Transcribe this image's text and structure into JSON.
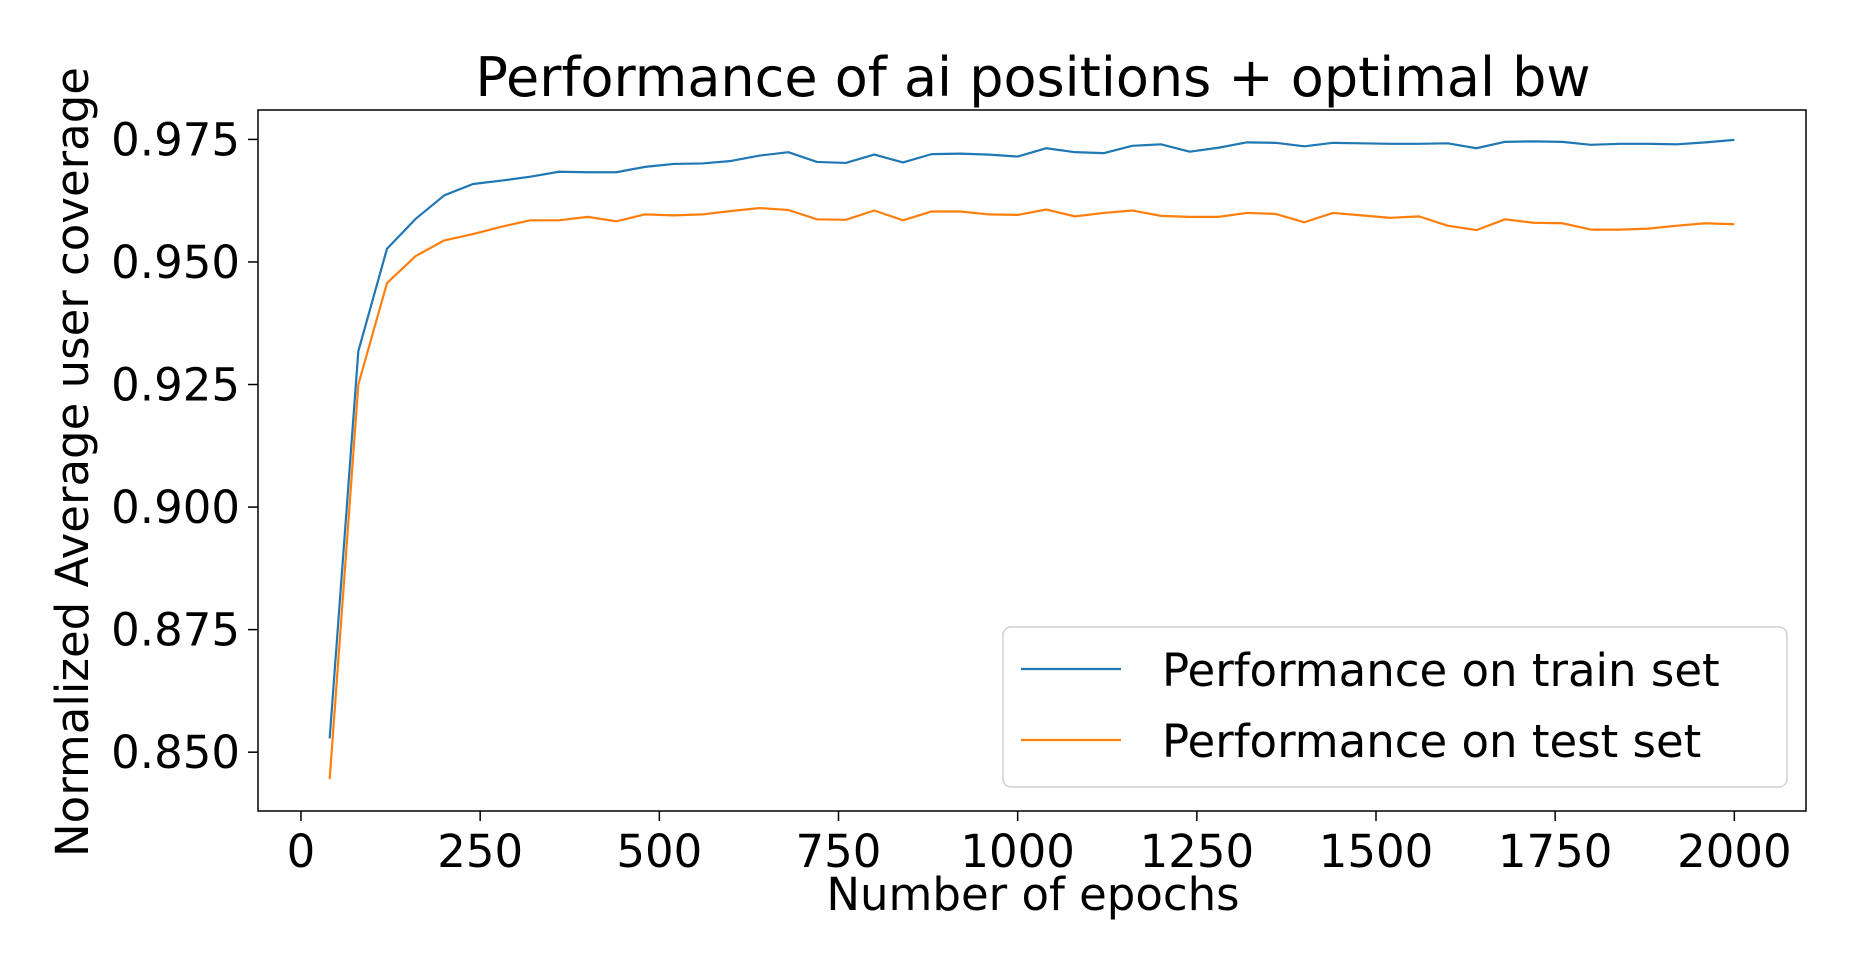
{
  "chart_data": {
    "type": "line",
    "title": "Performance of ai positions + optimal bw",
    "xlabel": "Number of epochs",
    "ylabel": "Normalized Average user coverage",
    "xlim": [
      -60,
      2100
    ],
    "ylim": [
      0.838,
      0.981
    ],
    "xticks": [
      0,
      250,
      500,
      750,
      1000,
      1250,
      1500,
      1750,
      2000
    ],
    "xtick_labels": [
      "0",
      "250",
      "500",
      "750",
      "1000",
      "1250",
      "1500",
      "1750",
      "2000"
    ],
    "yticks": [
      0.85,
      0.875,
      0.9,
      0.925,
      0.95,
      0.975
    ],
    "ytick_labels": [
      "0.850",
      "0.875",
      "0.900",
      "0.925",
      "0.950",
      "0.975"
    ],
    "grid": false,
    "legend_position": "lower-right",
    "x": [
      40,
      80,
      120,
      160,
      200,
      240,
      280,
      320,
      360,
      400,
      440,
      480,
      520,
      560,
      600,
      640,
      680,
      720,
      760,
      800,
      840,
      880,
      920,
      960,
      1000,
      1040,
      1080,
      1120,
      1160,
      1200,
      1240,
      1280,
      1320,
      1360,
      1400,
      1440,
      1480,
      1520,
      1560,
      1600,
      1640,
      1680,
      1720,
      1760,
      1800,
      1840,
      1880,
      1920,
      1960,
      2000
    ],
    "series": [
      {
        "name": "Performance on train set",
        "color": "#1f77b4",
        "values": [
          0.8528,
          0.9318,
          0.9527,
          0.9588,
          0.9636,
          0.9659,
          0.9666,
          0.9674,
          0.9684,
          0.9683,
          0.9683,
          0.9694,
          0.97,
          0.9701,
          0.9706,
          0.9717,
          0.9724,
          0.9704,
          0.9702,
          0.9719,
          0.9703,
          0.972,
          0.9721,
          0.9719,
          0.9715,
          0.9732,
          0.9724,
          0.9722,
          0.9737,
          0.974,
          0.9725,
          0.9733,
          0.9744,
          0.9743,
          0.9736,
          0.9743,
          0.9742,
          0.9741,
          0.9741,
          0.9742,
          0.9732,
          0.9745,
          0.9746,
          0.9745,
          0.9739,
          0.9741,
          0.9741,
          0.974,
          0.9744,
          0.9749
        ]
      },
      {
        "name": "Performance on test set",
        "color": "#ff7f0e",
        "values": [
          0.8445,
          0.925,
          0.9457,
          0.9512,
          0.9544,
          0.9557,
          0.9572,
          0.9585,
          0.9585,
          0.9592,
          0.9583,
          0.9597,
          0.9595,
          0.9597,
          0.9604,
          0.961,
          0.9606,
          0.9587,
          0.9586,
          0.9605,
          0.9585,
          0.9603,
          0.9603,
          0.9597,
          0.9596,
          0.9607,
          0.9593,
          0.96,
          0.9605,
          0.9594,
          0.9592,
          0.9592,
          0.96,
          0.9598,
          0.9581,
          0.96,
          0.9595,
          0.959,
          0.9593,
          0.9574,
          0.9565,
          0.9587,
          0.958,
          0.9579,
          0.9566,
          0.9566,
          0.9568,
          0.9574,
          0.9579,
          0.9577
        ]
      }
    ]
  }
}
